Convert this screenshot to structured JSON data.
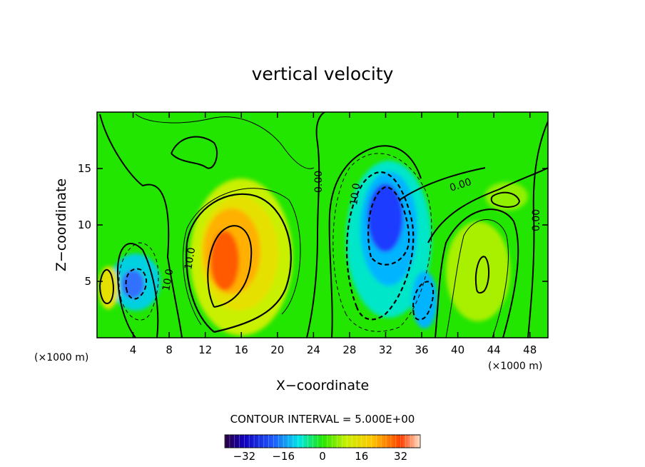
{
  "chart_data": {
    "type": "heatmap",
    "title": "vertical velocity",
    "xlabel": "X−coordinate",
    "ylabel": "Z−coordinate",
    "x_unit": "(×1000 m)",
    "y_unit": "(×1000 m)",
    "xlim": [
      0,
      50
    ],
    "ylim": [
      0,
      20
    ],
    "x_ticks": [
      4,
      8,
      12,
      16,
      20,
      24,
      28,
      32,
      36,
      40,
      44,
      48
    ],
    "y_ticks": [
      5,
      10,
      15
    ],
    "contour_interval": "CONTOUR INTERVAL = 5.000E+00",
    "colorbar": {
      "range": [
        -40,
        40
      ],
      "ticks": [
        -32,
        -16,
        0,
        16,
        32
      ],
      "tick_labels": [
        "−32",
        "−16",
        "0",
        "16",
        "32"
      ]
    },
    "contour_labels": [
      {
        "text": "10.0",
        "x": 10.6,
        "y": 7.5,
        "angle": -80
      },
      {
        "text": "10.0",
        "x": 7.6,
        "y": 5.2,
        "angle": -80
      },
      {
        "text": "0.00",
        "x": 24.8,
        "y": 14.4,
        "angle": -90
      },
      {
        "text": "10.0",
        "x": 29.0,
        "y": 12.6,
        "angle": -82
      },
      {
        "text": "0.00",
        "x": 40.3,
        "y": 13.4,
        "angle": -18
      },
      {
        "text": "0.00",
        "x": 48.4,
        "y": 10.5,
        "angle": -90
      }
    ],
    "features": [
      {
        "kind": "updraft",
        "x": 14.0,
        "y": 6.5,
        "peak": 34
      },
      {
        "kind": "downdraft",
        "x": 32.0,
        "y": 10.0,
        "peak": -30
      },
      {
        "kind": "downdraft",
        "x": 4.0,
        "y": 4.5,
        "peak": -18
      },
      {
        "kind": "downdraft",
        "x": 35.5,
        "y": 3.5,
        "peak": -16
      },
      {
        "kind": "updraft",
        "x": 1.0,
        "y": 5.0,
        "peak": 12
      },
      {
        "kind": "updraft",
        "x": 42.0,
        "y": 6.0,
        "peak": 10
      }
    ]
  },
  "colors": {
    "background_field": "#22e600",
    "frame": "#000000"
  }
}
